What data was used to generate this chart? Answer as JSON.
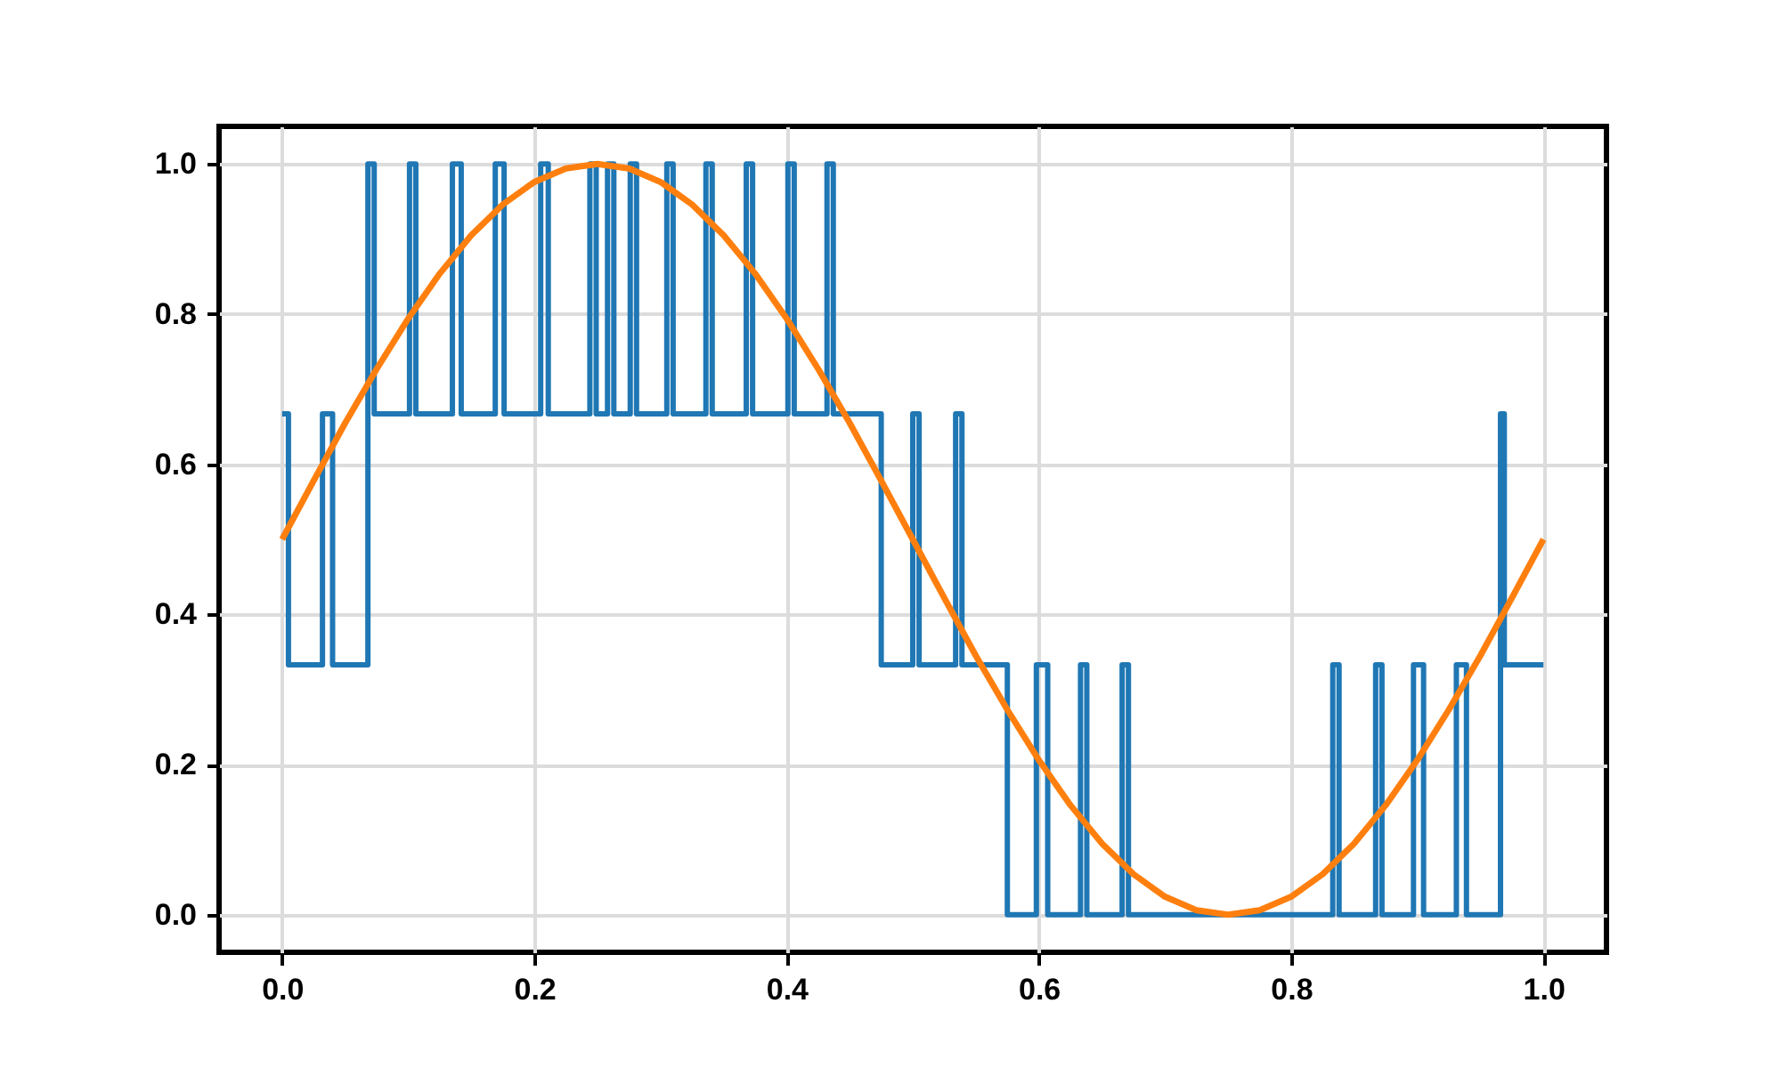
{
  "chart_data": {
    "type": "line",
    "xlim": [
      -0.05,
      1.05
    ],
    "ylim": [
      -0.05,
      1.05
    ],
    "xticks": [
      {
        "value": 0,
        "label": "0.0"
      },
      0.2,
      0.4,
      0.6,
      0.8,
      {
        "value": 1,
        "label": "1.0"
      }
    ],
    "yticks": [
      {
        "value": 0,
        "label": "0.0"
      },
      0.2,
      0.4,
      0.6,
      0.8,
      {
        "value": 1,
        "label": "1.0"
      }
    ],
    "grid": true,
    "series": [
      {
        "type": "step",
        "color": "#1f77b4",
        "x": [
          0,
          0.005,
          0.032,
          0.04,
          0.068,
          0.073,
          0.101,
          0.106,
          0.135,
          0.142,
          0.169,
          0.176,
          0.205,
          0.211,
          0.244,
          0.249,
          0.258,
          0.263,
          0.276,
          0.281,
          0.305,
          0.31,
          0.336,
          0.341,
          0.368,
          0.373,
          0.401,
          0.406,
          0.432,
          0.437,
          0.475,
          0.5,
          0.505,
          0.534,
          0.539,
          0.575,
          0.598,
          0.607,
          0.633,
          0.638,
          0.666,
          0.671,
          0.833,
          0.838,
          0.867,
          0.872,
          0.897,
          0.905,
          0.931,
          0.939,
          0.966,
          0.969,
          1
        ],
        "values": [
          0.667,
          0.333,
          0.667,
          0.333,
          1,
          0.667,
          1,
          0.667,
          1,
          0.667,
          1,
          0.667,
          1,
          0.667,
          1,
          0.667,
          1,
          0.667,
          1,
          0.667,
          1,
          0.667,
          1,
          0.667,
          1,
          0.667,
          1,
          0.667,
          1,
          0.667,
          0.333,
          0.667,
          0.333,
          0.667,
          0.333,
          0,
          0.333,
          0,
          0.333,
          0,
          0.333,
          0,
          0.333,
          0,
          0.333,
          0,
          0.333,
          0,
          0.333,
          0,
          0.667,
          0.333,
          0.333
        ]
      },
      {
        "color": "#ff7f0e",
        "x": [
          0,
          0.025,
          0.05,
          0.075,
          0.1,
          0.125,
          0.15,
          0.175,
          0.2,
          0.225,
          0.25,
          0.275,
          0.3,
          0.325,
          0.35,
          0.375,
          0.4,
          0.425,
          0.45,
          0.475,
          0.5,
          0.525,
          0.55,
          0.575,
          0.6,
          0.625,
          0.65,
          0.675,
          0.7,
          0.725,
          0.75,
          0.775,
          0.8,
          0.825,
          0.85,
          0.875,
          0.9,
          0.925,
          0.95,
          0.975,
          1
        ],
        "values": [
          0.5,
          0.578,
          0.655,
          0.727,
          0.794,
          0.854,
          0.905,
          0.946,
          0.976,
          0.994,
          1,
          0.994,
          0.976,
          0.946,
          0.905,
          0.854,
          0.794,
          0.727,
          0.655,
          0.578,
          0.5,
          0.422,
          0.345,
          0.273,
          0.206,
          0.146,
          0.095,
          0.054,
          0.024,
          0.006,
          0,
          0.006,
          0.024,
          0.054,
          0.095,
          0.146,
          0.206,
          0.273,
          0.345,
          0.422,
          0.5
        ]
      }
    ]
  }
}
